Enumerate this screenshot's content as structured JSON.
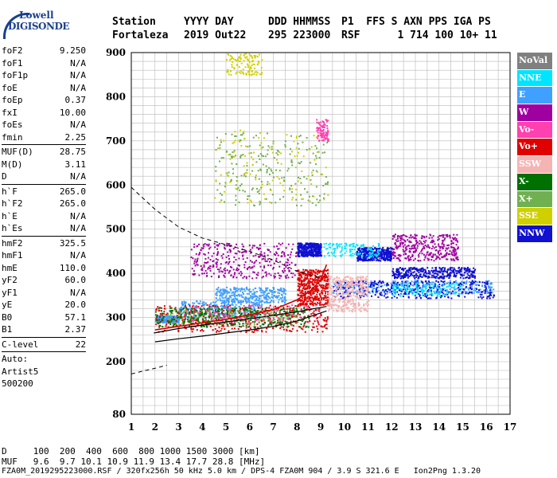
{
  "logo": {
    "line1": "Lowell",
    "line2": "DIGISONDE"
  },
  "header": {
    "station_label": "Station",
    "date_label": "YYYY DAY",
    "time_label": "DDD HHMMSS",
    "flags_label": "P1  FFS S AXN PPS IGA PS",
    "station_value": "Fortaleza",
    "date_value": "2019 Out22",
    "time_value": "295 223000",
    "flags_value": "RSF      1 714 100 10+ 11"
  },
  "params": [
    {
      "group": [
        {
          "name": "foF2",
          "value": "9.250"
        },
        {
          "name": "foF1",
          "value": "N/A"
        },
        {
          "name": "foF1p",
          "value": "N/A"
        },
        {
          "name": "foE",
          "value": "N/A"
        },
        {
          "name": "foEp",
          "value": "0.37"
        },
        {
          "name": "fxI",
          "value": "10.00"
        },
        {
          "name": "foEs",
          "value": "N/A"
        },
        {
          "name": "fmin",
          "value": "2.25"
        }
      ]
    },
    {
      "group": [
        {
          "name": "MUF(D)",
          "value": "28.75"
        },
        {
          "name": "M(D)",
          "value": "3.11"
        },
        {
          "name": "D",
          "value": "N/A"
        }
      ]
    },
    {
      "group": [
        {
          "name": "h`F",
          "value": "265.0"
        },
        {
          "name": "h`F2",
          "value": "265.0"
        },
        {
          "name": "h`E",
          "value": "N/A"
        },
        {
          "name": "h`Es",
          "value": "N/A"
        }
      ]
    },
    {
      "group": [
        {
          "name": "hmF2",
          "value": "325.5"
        },
        {
          "name": "hmF1",
          "value": "N/A"
        },
        {
          "name": "hmE",
          "value": "110.0"
        },
        {
          "name": "yF2",
          "value": "60.0"
        },
        {
          "name": "yF1",
          "value": "N/A"
        },
        {
          "name": "yE",
          "value": "20.0"
        },
        {
          "name": "B0",
          "value": "57.1"
        },
        {
          "name": "B1",
          "value": "2.37"
        }
      ]
    },
    {
      "group": [
        {
          "name": "C-level",
          "value": "22"
        }
      ]
    }
  ],
  "auto_text": [
    "Auto:",
    "Artist5",
    "500200"
  ],
  "legend": [
    {
      "label": "NoVal",
      "color": "#808080"
    },
    {
      "label": "NNE",
      "color": "#00e5ff"
    },
    {
      "label": "E",
      "color": "#3fa0ff"
    },
    {
      "label": "W",
      "color": "#a000a0"
    },
    {
      "label": "Vo-",
      "color": "#ff40b0"
    },
    {
      "label": "Vo+",
      "color": "#e00000"
    },
    {
      "label": "SSW",
      "color": "#f4b4b4"
    },
    {
      "label": "X-",
      "color": "#007000"
    },
    {
      "label": "X+",
      "color": "#70b050"
    },
    {
      "label": "SSE",
      "color": "#d0d000"
    },
    {
      "label": "NNW",
      "color": "#1010d0"
    }
  ],
  "footer": {
    "d_line": "D     100  200  400  600  800 1000 1500 3000 [km]",
    "muf_line": "MUF   9.6  9.7 10.1 10.9 11.9 13.4 17.7 28.8 [MHz]",
    "file_line": "FZA0M_2019295223000.RSF / 320fx256h 50 kHz 5.0 km / DPS-4 FZA0M 904 / 3.9 S 321.6 E   Ion2Png 1.3.20"
  },
  "chart_data": {
    "type": "scatter",
    "xlim": [
      1,
      17
    ],
    "ylim": [
      80,
      900
    ],
    "x_ticks": [
      1,
      2,
      3,
      4,
      5,
      6,
      7,
      8,
      9,
      10,
      11,
      12,
      13,
      14,
      15,
      16,
      17
    ],
    "y_ticks": [
      80,
      200,
      300,
      400,
      500,
      600,
      700,
      800,
      900
    ],
    "grid": true,
    "title": "",
    "xlabel": "",
    "ylabel": "",
    "series": [
      {
        "name": "E",
        "color_key": "E",
        "band": [
          [
            2,
            3.0,
            290,
            305
          ],
          [
            3,
            6.5,
            300,
            340
          ],
          [
            4.5,
            7.5,
            335,
            370
          ],
          [
            9.5,
            16.3,
            355,
            385
          ]
        ],
        "points": 1300
      },
      {
        "name": "NNW",
        "color_key": "NNW",
        "band": [
          [
            9.5,
            16.3,
            345,
            385
          ],
          [
            12,
            15.5,
            390,
            415
          ],
          [
            10.5,
            12,
            430,
            460
          ],
          [
            8,
            9,
            440,
            470
          ]
        ],
        "points": 1400
      },
      {
        "name": "W",
        "color_key": "W",
        "band": [
          [
            12,
            14.8,
            430,
            490
          ],
          [
            3.5,
            8,
            390,
            470
          ]
        ],
        "points": 700
      },
      {
        "name": "Vo+",
        "color_key": "Vo+",
        "band": [
          [
            2,
            9.3,
            268,
            330
          ],
          [
            8,
            9.3,
            330,
            410
          ]
        ],
        "points": 900
      },
      {
        "name": "SSW",
        "color_key": "SSW",
        "band": [
          [
            9.3,
            11,
            315,
            395
          ]
        ],
        "points": 350
      },
      {
        "name": "X+",
        "color_key": "X+",
        "band": [
          [
            2.5,
            8,
            285,
            320
          ],
          [
            4.5,
            9.3,
            555,
            720
          ]
        ],
        "points": 450
      },
      {
        "name": "X-",
        "color_key": "X-",
        "band": [
          [
            2,
            8.5,
            280,
            325
          ]
        ],
        "points": 300
      },
      {
        "name": "NNE",
        "color_key": "NNE",
        "band": [
          [
            9,
            11.5,
            440,
            470
          ],
          [
            12,
            15,
            350,
            380
          ]
        ],
        "points": 250
      },
      {
        "name": "SSE",
        "color_key": "SSE",
        "band": [
          [
            4.5,
            9.3,
            560,
            730
          ],
          [
            5,
            6.5,
            850,
            900
          ]
        ],
        "points": 220
      },
      {
        "name": "Vo-",
        "color_key": "Vo-",
        "band": [
          [
            3,
            9,
            290,
            330
          ],
          [
            8.8,
            9.3,
            700,
            750
          ]
        ],
        "points": 180
      }
    ],
    "profile_curve": [
      [
        1.95,
        265
      ],
      [
        3,
        275
      ],
      [
        4,
        283
      ],
      [
        5,
        290
      ],
      [
        6,
        297
      ],
      [
        7,
        305
      ],
      [
        8,
        313
      ],
      [
        8.7,
        320
      ],
      [
        9.25,
        325
      ]
    ],
    "trace_o": [
      [
        2,
        272
      ],
      [
        3,
        280
      ],
      [
        4,
        288
      ],
      [
        5,
        296
      ],
      [
        6,
        306
      ],
      [
        7,
        318
      ],
      [
        8,
        340
      ],
      [
        8.6,
        362
      ],
      [
        9.0,
        385
      ],
      [
        9.25,
        420
      ]
    ],
    "lower_trace": [
      [
        2,
        245
      ],
      [
        3,
        252
      ],
      [
        4,
        258
      ],
      [
        5,
        265
      ],
      [
        6,
        272
      ],
      [
        7,
        280
      ],
      [
        8,
        292
      ],
      [
        8.7,
        305
      ],
      [
        9.25,
        315
      ]
    ],
    "dashed_curve": [
      [
        1,
        595
      ],
      [
        2,
        545
      ],
      [
        3,
        505
      ],
      [
        4,
        480
      ],
      [
        5,
        465
      ],
      [
        6,
        450
      ],
      [
        7,
        430
      ],
      [
        8,
        405
      ],
      [
        9,
        390
      ]
    ],
    "dashed_lower": [
      [
        1,
        172
      ],
      [
        1.6,
        180
      ],
      [
        2,
        185
      ],
      [
        2.5,
        192
      ]
    ]
  }
}
